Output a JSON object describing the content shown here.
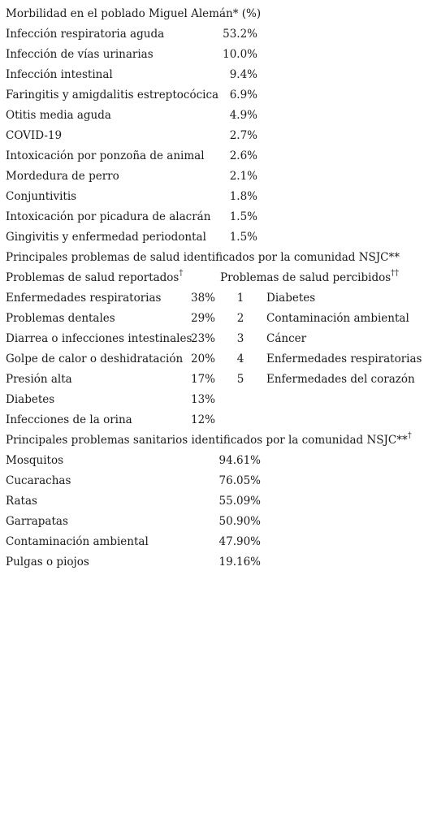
{
  "morbidity": {
    "title": "Morbilidad en el poblado Miguel Alemán* (%)",
    "rows": [
      {
        "name": "Infección respiratoria aguda",
        "value": "53.2%"
      },
      {
        "name": "Infección de vías urinarias",
        "value": "10.0%"
      },
      {
        "name": "Infección intestinal",
        "value": "9.4%"
      },
      {
        "name": "Faringitis y amigdalitis estreptocócica",
        "value": "6.9%"
      },
      {
        "name": "Otitis media aguda",
        "value": "4.9%"
      },
      {
        "name": "COVID-19",
        "value": "2.7%"
      },
      {
        "name": "Intoxicación por ponzoña de animal",
        "value": "2.6%"
      },
      {
        "name": "Mordedura de perro",
        "value": "2.1%"
      },
      {
        "name": "Conjuntivitis",
        "value": "1.8%"
      },
      {
        "name": "Intoxicación por picadura de alacrán",
        "value": "1.5%"
      },
      {
        "name": "Gingivitis y enfermedad periodontal",
        "value": "1.5%"
      }
    ]
  },
  "health_problems": {
    "title": "Principales problemas de salud identificados por la comunidad NSJC**",
    "reported_header": "Problemas de salud reportados",
    "reported_mark": "†",
    "perceived_header": "Problemas de salud percibidos",
    "perceived_mark": "††",
    "reported": [
      {
        "name": "Enfermedades respiratorias",
        "value": "38%"
      },
      {
        "name": "Problemas dentales",
        "value": "29%"
      },
      {
        "name": "Diarrea o infecciones intestinales",
        "value": "23%"
      },
      {
        "name": "Golpe de calor o deshidratación",
        "value": "20%"
      },
      {
        "name": "Presión alta",
        "value": "17%"
      },
      {
        "name": "Diabetes",
        "value": "13%"
      },
      {
        "name": "Infecciones de la orina",
        "value": "12%"
      }
    ],
    "perceived": [
      {
        "rank": "1",
        "name": "Diabetes"
      },
      {
        "rank": "2",
        "name": "Contaminación ambiental"
      },
      {
        "rank": "3",
        "name": "Cáncer"
      },
      {
        "rank": "4",
        "name": "Enfermedades respiratorias"
      },
      {
        "rank": "5",
        "name": "Enfermedades del corazón"
      }
    ]
  },
  "sanitary": {
    "title": "Principales problemas sanitarios identificados por la comunidad NSJC**",
    "title_mark": "†",
    "rows": [
      {
        "name": "Mosquitos",
        "value": "94.61%"
      },
      {
        "name": "Cucarachas",
        "value": "76.05%"
      },
      {
        "name": "Ratas",
        "value": "55.09%"
      },
      {
        "name": "Garrapatas",
        "value": "50.90%"
      },
      {
        "name": "Contaminación ambiental",
        "value": "47.90%"
      },
      {
        "name": "Pulgas o piojos",
        "value": "19.16%"
      }
    ]
  }
}
